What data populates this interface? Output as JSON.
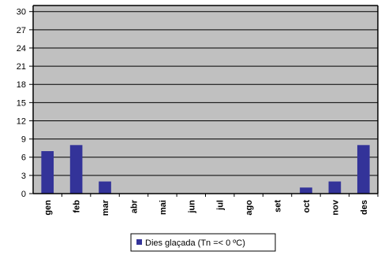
{
  "chart_data": {
    "type": "bar",
    "categories": [
      "gen",
      "feb",
      "mar",
      "abr",
      "mai",
      "jun",
      "jul",
      "ago",
      "set",
      "oct",
      "nov",
      "des"
    ],
    "series": [
      {
        "name": "Dies glaçada (Tn =< 0 ºC)",
        "values": [
          7,
          8,
          2,
          0,
          0,
          0,
          0,
          0,
          0,
          1,
          2,
          8
        ],
        "color": "#333399"
      }
    ],
    "yticks": [
      0,
      3,
      6,
      9,
      12,
      15,
      18,
      21,
      24,
      27,
      30
    ],
    "ylim": [
      0,
      31
    ],
    "grid": true,
    "plot_background": "#c0c0c0",
    "legend_position": "bottom-center",
    "title": "",
    "xlabel": "",
    "ylabel": ""
  }
}
